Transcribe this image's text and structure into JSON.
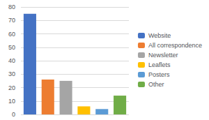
{
  "chart_data": {
    "type": "bar",
    "categories": [
      "Website",
      "All correspondence",
      "Newsletter",
      "Leaflets",
      "Posters",
      "Other"
    ],
    "values": [
      75,
      26,
      25,
      6,
      4,
      14
    ],
    "colors": [
      "#4472C4",
      "#ED7D31",
      "#A5A5A5",
      "#FFC000",
      "#5B9BD5",
      "#70AD47"
    ],
    "ylim": [
      0,
      80
    ],
    "yticks": [
      0,
      10,
      20,
      30,
      40,
      50,
      60,
      70,
      80
    ],
    "grid": true,
    "legend": "right",
    "tick_labels": "y"
  }
}
